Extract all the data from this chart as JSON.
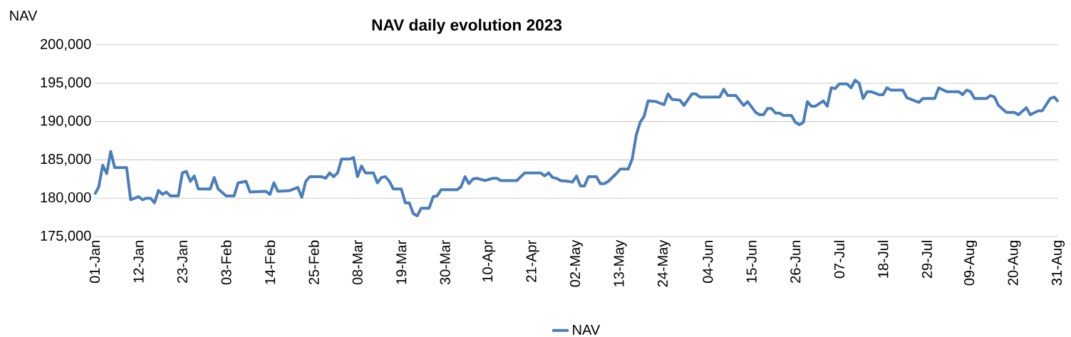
{
  "chart_data": {
    "type": "line",
    "title": "NAV daily evolution 2023",
    "ylabel": "NAV",
    "x": [
      "2023-01-01",
      "2023-01-02",
      "2023-01-03",
      "2023-01-04",
      "2023-01-05",
      "2023-01-06",
      "2023-01-09",
      "2023-01-10",
      "2023-01-12",
      "2023-01-13",
      "2023-01-14",
      "2023-01-15",
      "2023-01-16",
      "2023-01-17",
      "2023-01-18",
      "2023-01-19",
      "2023-01-20",
      "2023-01-22",
      "2023-01-23",
      "2023-01-24",
      "2023-01-25",
      "2023-01-26",
      "2023-01-27",
      "2023-01-30",
      "2023-01-31",
      "2023-02-01",
      "2023-02-03",
      "2023-02-05",
      "2023-02-06",
      "2023-02-08",
      "2023-02-09",
      "2023-02-13",
      "2023-02-14",
      "2023-02-15",
      "2023-02-16",
      "2023-02-19",
      "2023-02-21",
      "2023-02-22",
      "2023-02-23",
      "2023-02-24",
      "2023-02-27",
      "2023-02-28",
      "2023-03-01",
      "2023-03-02",
      "2023-03-03",
      "2023-03-04",
      "2023-03-06",
      "2023-03-07",
      "2023-03-08",
      "2023-03-09",
      "2023-03-10",
      "2023-03-12",
      "2023-03-13",
      "2023-03-14",
      "2023-03-15",
      "2023-03-16",
      "2023-03-17",
      "2023-03-19",
      "2023-03-20",
      "2023-03-21",
      "2023-03-22",
      "2023-03-23",
      "2023-03-24",
      "2023-03-26",
      "2023-03-27",
      "2023-03-28",
      "2023-03-29",
      "2023-04-02",
      "2023-04-03",
      "2023-04-04",
      "2023-04-05",
      "2023-04-06",
      "2023-04-07",
      "2023-04-09",
      "2023-04-11",
      "2023-04-12",
      "2023-04-13",
      "2023-04-17",
      "2023-04-19",
      "2023-04-23",
      "2023-04-24",
      "2023-04-25",
      "2023-04-26",
      "2023-04-27",
      "2023-04-28",
      "2023-04-30",
      "2023-05-01",
      "2023-05-02",
      "2023-05-03",
      "2023-05-04",
      "2023-05-05",
      "2023-05-07",
      "2023-05-08",
      "2023-05-09",
      "2023-05-10",
      "2023-05-12",
      "2023-05-13",
      "2023-05-15",
      "2023-05-16",
      "2023-05-17",
      "2023-05-18",
      "2023-05-19",
      "2023-05-20",
      "2023-05-22",
      "2023-05-23",
      "2023-05-24",
      "2023-05-25",
      "2023-05-26",
      "2023-05-28",
      "2023-05-29",
      "2023-05-31",
      "2023-06-01",
      "2023-06-02",
      "2023-06-07",
      "2023-06-08",
      "2023-06-09",
      "2023-06-11",
      "2023-06-13",
      "2023-06-14",
      "2023-06-16",
      "2023-06-17",
      "2023-06-18",
      "2023-06-19",
      "2023-06-20",
      "2023-06-21",
      "2023-06-22",
      "2023-06-23",
      "2023-06-25",
      "2023-06-26",
      "2023-06-27",
      "2023-06-28",
      "2023-06-29",
      "2023-06-30",
      "2023-07-01",
      "2023-07-03",
      "2023-07-04",
      "2023-07-05",
      "2023-07-06",
      "2023-07-07",
      "2023-07-09",
      "2023-07-10",
      "2023-07-11",
      "2023-07-12",
      "2023-07-13",
      "2023-07-14",
      "2023-07-15",
      "2023-07-17",
      "2023-07-18",
      "2023-07-19",
      "2023-07-20",
      "2023-07-23",
      "2023-07-24",
      "2023-07-27",
      "2023-07-28",
      "2023-07-31",
      "2023-08-01",
      "2023-08-03",
      "2023-08-06",
      "2023-08-07",
      "2023-08-08",
      "2023-08-09",
      "2023-08-10",
      "2023-08-13",
      "2023-08-14",
      "2023-08-15",
      "2023-08-16",
      "2023-08-18",
      "2023-08-20",
      "2023-08-21",
      "2023-08-23",
      "2023-08-24",
      "2023-08-26",
      "2023-08-27",
      "2023-08-29",
      "2023-08-30",
      "2023-08-31"
    ],
    "series": [
      {
        "name": "NAV",
        "color": "#4a7ebb",
        "values": [
          180500,
          181500,
          184300,
          183200,
          186100,
          184000,
          184000,
          179800,
          180200,
          179800,
          180000,
          180000,
          179400,
          181000,
          180500,
          180800,
          180300,
          180300,
          183300,
          183500,
          182200,
          182900,
          181200,
          181200,
          182700,
          181200,
          180300,
          180300,
          182000,
          182200,
          180800,
          180900,
          180500,
          182000,
          180900,
          181000,
          181400,
          180100,
          182200,
          182800,
          182800,
          182600,
          183300,
          182800,
          183300,
          185100,
          185100,
          185300,
          182800,
          184200,
          183300,
          183300,
          182000,
          182700,
          182800,
          182200,
          181200,
          181200,
          179400,
          179400,
          178000,
          177700,
          178700,
          178700,
          180200,
          180300,
          181100,
          181100,
          181500,
          182800,
          181900,
          182500,
          182600,
          182300,
          182600,
          182600,
          182300,
          182300,
          183300,
          183300,
          182900,
          183300,
          182700,
          182600,
          182300,
          182200,
          182100,
          182900,
          181600,
          181600,
          182800,
          182800,
          181900,
          181900,
          182200,
          183200,
          183800,
          183800,
          185100,
          188200,
          189900,
          190700,
          192700,
          192600,
          192400,
          192200,
          193600,
          192900,
          192800,
          192100,
          193600,
          193600,
          193200,
          193200,
          194200,
          193400,
          193400,
          192100,
          192600,
          191200,
          190900,
          190900,
          191700,
          191700,
          191100,
          191100,
          190800,
          190800,
          189900,
          189600,
          189900,
          192600,
          192000,
          192000,
          192700,
          192000,
          194400,
          194300,
          194900,
          194900,
          194400,
          195400,
          195000,
          193000,
          193900,
          193900,
          193500,
          193500,
          194400,
          194100,
          194100,
          193100,
          192500,
          193000,
          193000,
          194400,
          193900,
          193900,
          193500,
          194100,
          193900,
          193000,
          193000,
          193400,
          193200,
          192100,
          191200,
          191200,
          190900,
          191800,
          190900,
          191400,
          191400,
          193000,
          193200,
          192600
        ]
      }
    ],
    "xlim": [
      "2023-01-01",
      "2023-08-31"
    ],
    "xticks": [
      {
        "value": "2023-01-01",
        "label": "01-Jan"
      },
      {
        "value": "2023-01-12",
        "label": "12-Jan"
      },
      {
        "value": "2023-01-23",
        "label": "23-Jan"
      },
      {
        "value": "2023-02-03",
        "label": "03-Feb"
      },
      {
        "value": "2023-02-14",
        "label": "14-Feb"
      },
      {
        "value": "2023-02-25",
        "label": "25-Feb"
      },
      {
        "value": "2023-03-08",
        "label": "08-Mar"
      },
      {
        "value": "2023-03-19",
        "label": "19-Mar"
      },
      {
        "value": "2023-03-30",
        "label": "30-Mar"
      },
      {
        "value": "2023-04-10",
        "label": "10-Apr"
      },
      {
        "value": "2023-04-21",
        "label": "21-Apr"
      },
      {
        "value": "2023-05-02",
        "label": "02-May"
      },
      {
        "value": "2023-05-13",
        "label": "13-May"
      },
      {
        "value": "2023-05-24",
        "label": "24-May"
      },
      {
        "value": "2023-06-04",
        "label": "04-Jun"
      },
      {
        "value": "2023-06-15",
        "label": "15-Jun"
      },
      {
        "value": "2023-06-26",
        "label": "26-Jun"
      },
      {
        "value": "2023-07-07",
        "label": "07-Jul"
      },
      {
        "value": "2023-07-18",
        "label": "18-Jul"
      },
      {
        "value": "2023-07-29",
        "label": "29-Jul"
      },
      {
        "value": "2023-08-09",
        "label": "09-Aug"
      },
      {
        "value": "2023-08-20",
        "label": "20-Aug"
      },
      {
        "value": "2023-08-31",
        "label": "31-Aug"
      }
    ],
    "ylim": [
      175000,
      200000
    ],
    "yticks": [
      {
        "value": 175000,
        "label": "175,000"
      },
      {
        "value": 180000,
        "label": "180,000"
      },
      {
        "value": 185000,
        "label": "185,000"
      },
      {
        "value": 190000,
        "label": "190,000"
      },
      {
        "value": 195000,
        "label": "195,000"
      },
      {
        "value": 200000,
        "label": "200,000"
      }
    ],
    "grid": "y",
    "legend": "bottom",
    "marker": "none",
    "line_style": "solid"
  }
}
